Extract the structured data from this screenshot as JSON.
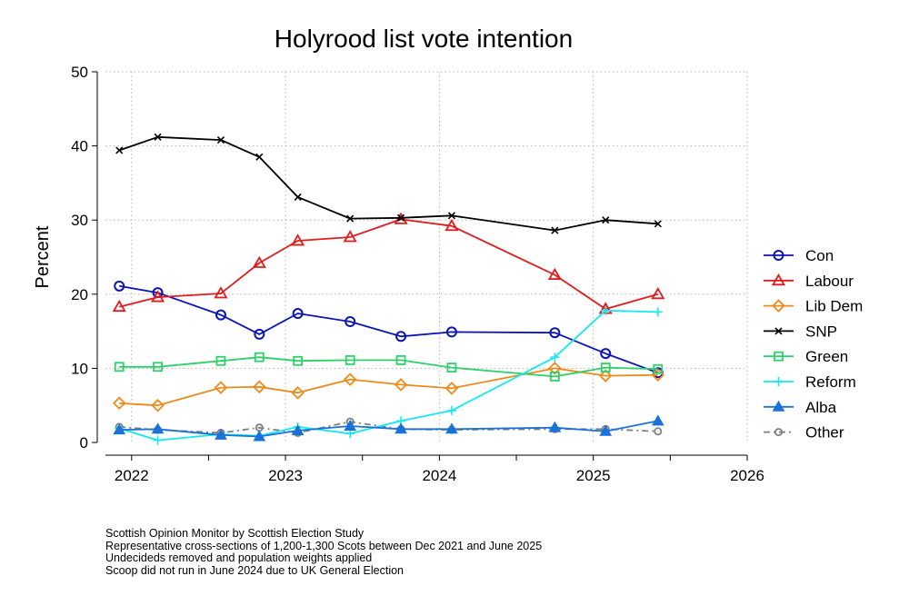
{
  "chart_data": {
    "type": "line",
    "title": "Holyrood list vote intention",
    "ylabel": "Percent",
    "xlabel": "",
    "xlim": [
      2021.83,
      2026
    ],
    "ylim": [
      0,
      50
    ],
    "x_ticks": [
      2022,
      2023,
      2024,
      2025,
      2026
    ],
    "y_ticks": [
      0,
      10,
      20,
      30,
      40,
      50
    ],
    "grid": true,
    "legend_position": "right",
    "x": [
      2021.92,
      2022.17,
      2022.58,
      2022.83,
      2023.08,
      2023.42,
      2023.75,
      2024.08,
      2024.75,
      2025.08,
      2025.42
    ],
    "series": [
      {
        "name": "Con",
        "color": "#0a13b8",
        "marker": "circle",
        "values": [
          21.1,
          20.2,
          17.2,
          14.6,
          17.4,
          16.3,
          14.3,
          14.9,
          14.8,
          12.0,
          9.4
        ]
      },
      {
        "name": "Labour",
        "color": "#e31a1c",
        "marker": "triangle",
        "values": [
          18.3,
          19.6,
          20.1,
          24.2,
          27.2,
          27.7,
          30.1,
          29.2,
          22.6,
          18.0,
          20.0
        ]
      },
      {
        "name": "Lib Dem",
        "color": "#ee8a1a",
        "marker": "diamond",
        "values": [
          5.3,
          5.0,
          7.4,
          7.5,
          6.7,
          8.5,
          7.8,
          7.3,
          10.0,
          9.0,
          9.1
        ]
      },
      {
        "name": "SNP",
        "color": "#000000",
        "marker": "x",
        "values": [
          39.4,
          41.2,
          40.8,
          38.5,
          33.1,
          30.2,
          30.3,
          30.6,
          28.6,
          30.0,
          29.5
        ]
      },
      {
        "name": "Green",
        "color": "#2ed06a",
        "marker": "square",
        "values": [
          10.2,
          10.2,
          11.0,
          11.5,
          11.0,
          11.1,
          11.1,
          10.1,
          8.9,
          10.1,
          9.9
        ]
      },
      {
        "name": "Reform",
        "color": "#12eaf0",
        "marker": "plus",
        "values": [
          1.9,
          0.3,
          1.1,
          0.9,
          2.1,
          1.2,
          2.9,
          4.3,
          11.5,
          17.8,
          17.6
        ]
      },
      {
        "name": "Alba",
        "color": "#1a72d9",
        "marker": "filled-triangle",
        "values": [
          1.7,
          1.8,
          1.0,
          0.8,
          1.6,
          2.2,
          1.8,
          1.8,
          2.0,
          1.5,
          2.9
        ]
      },
      {
        "name": "Other",
        "color": "#7f7f7f",
        "marker": "small-circle",
        "dashed": true,
        "values": [
          2.1,
          1.7,
          1.3,
          2.0,
          1.3,
          2.8,
          1.8,
          1.7,
          1.8,
          1.8,
          1.5
        ]
      }
    ]
  },
  "notes": [
    "Scottish Opinion Monitor by Scottish Election Study",
    "Representative cross-sections of 1,200-1,300 Scots between Dec 2021 and June 2025",
    "Undecideds removed and population weights applied",
    "Scoop did not run in June 2024 due to UK General Election"
  ]
}
